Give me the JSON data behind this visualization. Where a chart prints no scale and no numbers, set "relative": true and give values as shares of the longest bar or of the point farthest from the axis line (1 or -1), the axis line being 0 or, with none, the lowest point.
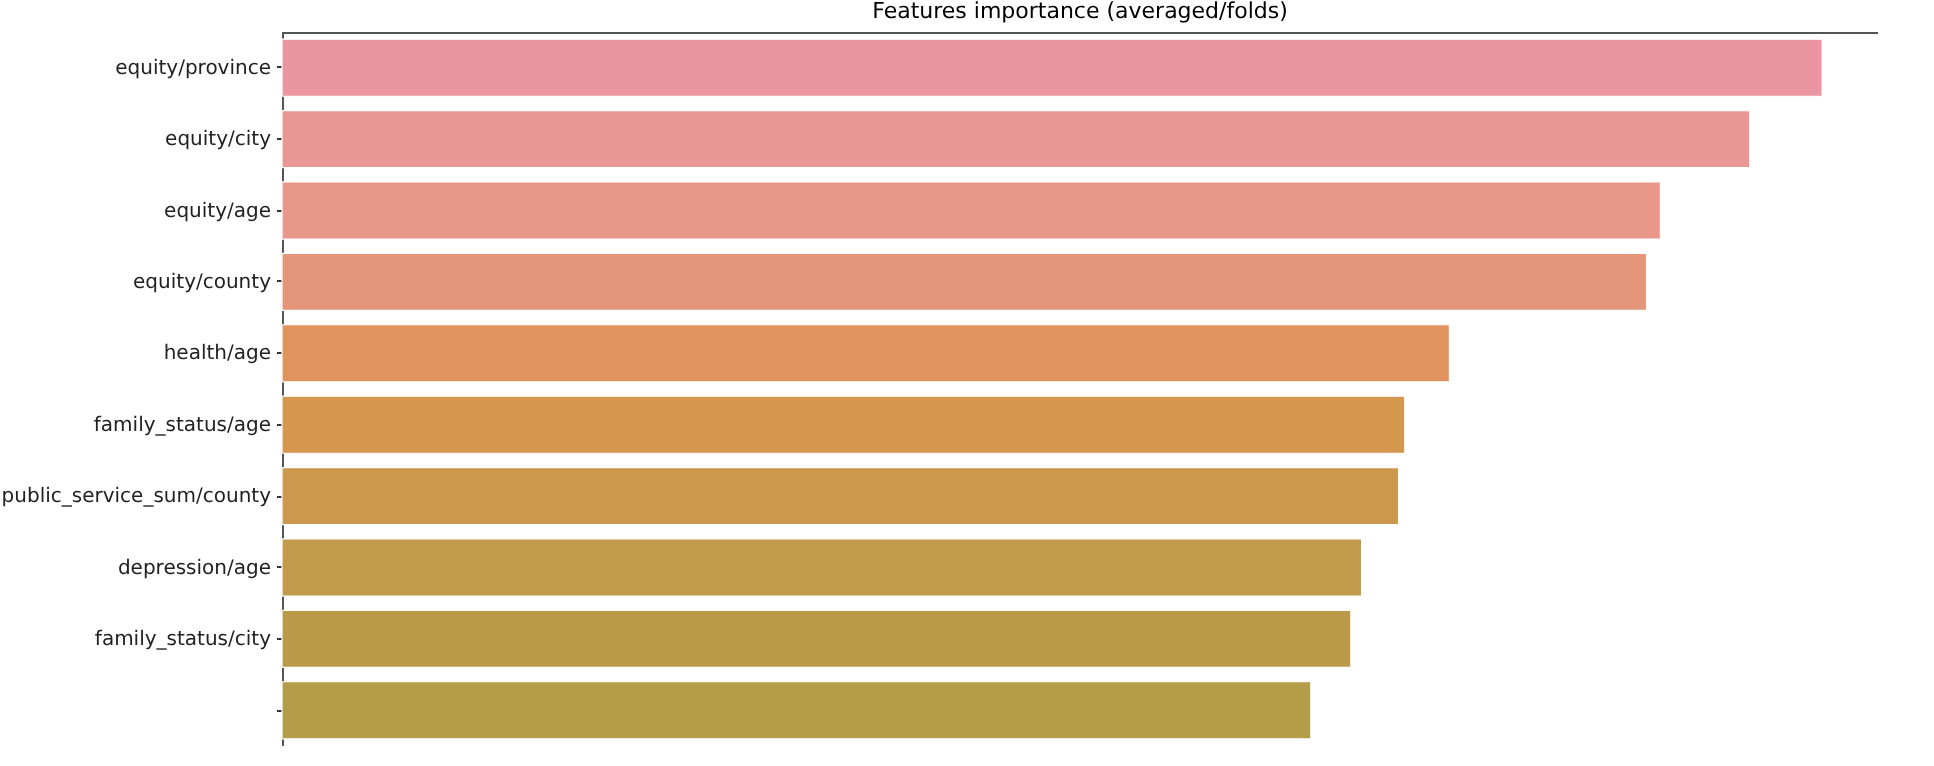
{
  "chart_data": {
    "type": "bar",
    "orientation": "horizontal",
    "relative": true,
    "title": "Features importance (averaged/folds)",
    "categories": [
      "equity/province",
      "equity/city",
      "equity/age",
      "equity/county",
      "health/age",
      "family_status/age",
      "public_service_sum/county",
      "depression/age",
      "family_status/city",
      null
    ],
    "values": [
      1,
      0.953,
      0.895,
      0.886,
      0.758,
      0.729,
      0.725,
      0.701,
      0.694,
      0.668
    ],
    "colors": [
      "#ea959f",
      "#e99795",
      "#e8988a",
      "#e5967a",
      "#e1935d",
      "#d5964e",
      "#cb984d",
      "#c39a4b",
      "#bb9b4a",
      "#b39d48"
    ]
  }
}
